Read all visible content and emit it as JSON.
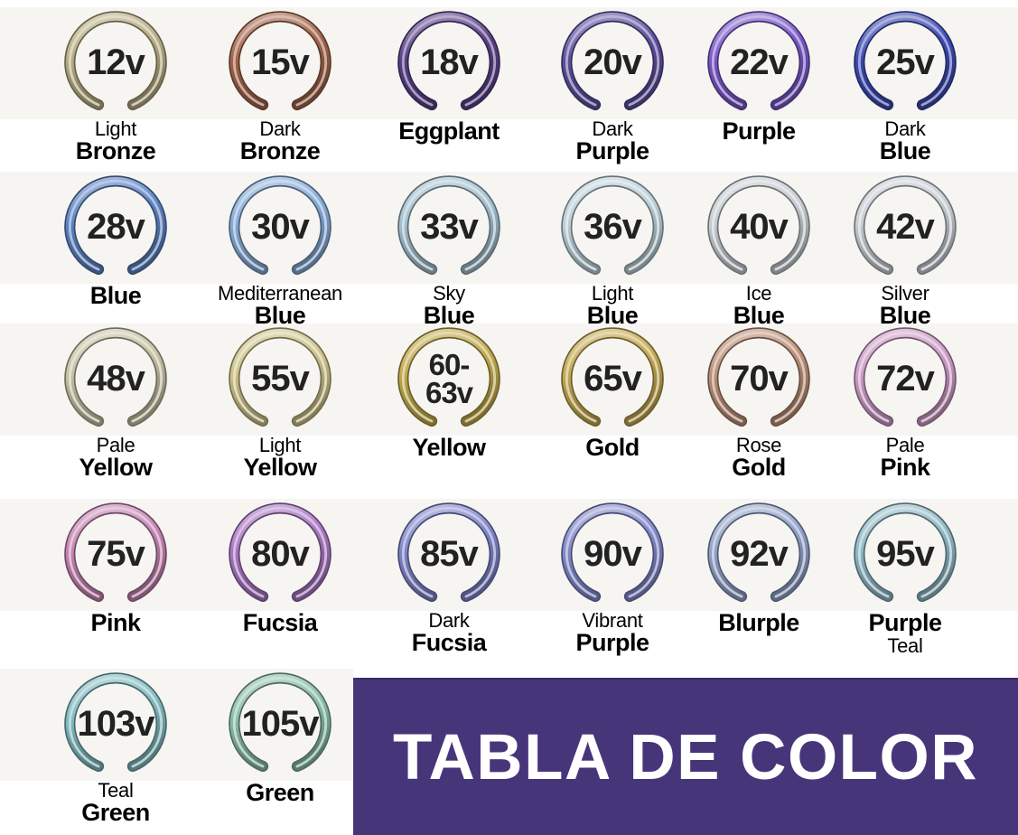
{
  "banner": {
    "title": "TABLA DE COLOR",
    "background": "#47357a",
    "text_color": "#ffffff"
  },
  "page": {
    "background": "#ffffff",
    "photo_strip_color": "#f6f5f2"
  },
  "rings": [
    {
      "voltage_lines": [
        "12v"
      ],
      "label_lines": [
        {
          "text": "Light",
          "bold": false
        },
        {
          "text": "Bronze",
          "bold": true
        }
      ],
      "color": "#b7ad83"
    },
    {
      "voltage_lines": [
        "15v"
      ],
      "label_lines": [
        {
          "text": "Dark",
          "bold": false
        },
        {
          "text": "Bronze",
          "bold": true
        }
      ],
      "color": "#a2644a"
    },
    {
      "voltage_lines": [
        "18v"
      ],
      "label_lines": [
        {
          "text": "Eggplant",
          "bold": true
        }
      ],
      "color": "#5a4088"
    },
    {
      "voltage_lines": [
        "20v"
      ],
      "label_lines": [
        {
          "text": "Dark",
          "bold": false
        },
        {
          "text": "Purple",
          "bold": true
        }
      ],
      "color": "#5d4f9e"
    },
    {
      "voltage_lines": [
        "22v"
      ],
      "label_lines": [
        {
          "text": "Purple",
          "bold": true
        }
      ],
      "color": "#7a58c8"
    },
    {
      "voltage_lines": [
        "25v"
      ],
      "label_lines": [
        {
          "text": "Dark",
          "bold": false
        },
        {
          "text": "Blue",
          "bold": true
        }
      ],
      "color": "#3c4ab2"
    },
    {
      "voltage_lines": [
        "28v"
      ],
      "label_lines": [
        {
          "text": "Blue",
          "bold": true
        }
      ],
      "color": "#5c82c2"
    },
    {
      "voltage_lines": [
        "30v"
      ],
      "label_lines": [
        {
          "text": "Mediterranean",
          "bold": false
        },
        {
          "text": "Blue",
          "bold": true
        }
      ],
      "color": "#86abd6"
    },
    {
      "voltage_lines": [
        "33v"
      ],
      "label_lines": [
        {
          "text": "Sky",
          "bold": false
        },
        {
          "text": "Blue",
          "bold": true
        }
      ],
      "color": "#a3bfce"
    },
    {
      "voltage_lines": [
        "36v"
      ],
      "label_lines": [
        {
          "text": "Light",
          "bold": false
        },
        {
          "text": "Blue",
          "bold": true
        }
      ],
      "color": "#bccfd8"
    },
    {
      "voltage_lines": [
        "40v"
      ],
      "label_lines": [
        {
          "text": "Ice",
          "bold": false
        },
        {
          "text": "Blue",
          "bold": true
        }
      ],
      "color": "#c6ccd1"
    },
    {
      "voltage_lines": [
        "42v"
      ],
      "label_lines": [
        {
          "text": "Silver",
          "bold": false
        },
        {
          "text": "Blue",
          "bold": true
        }
      ],
      "color": "#c8cdd2"
    },
    {
      "voltage_lines": [
        "48v"
      ],
      "label_lines": [
        {
          "text": "Pale",
          "bold": false
        },
        {
          "text": "Yellow",
          "bold": true
        }
      ],
      "color": "#c6c1a4"
    },
    {
      "voltage_lines": [
        "55v"
      ],
      "label_lines": [
        {
          "text": "Light",
          "bold": false
        },
        {
          "text": "Yellow",
          "bold": true
        }
      ],
      "color": "#cdc289"
    },
    {
      "voltage_lines": [
        "60-",
        "63v"
      ],
      "label_lines": [
        {
          "text": "Yellow",
          "bold": true
        }
      ],
      "color": "#c0a94c"
    },
    {
      "voltage_lines": [
        "65v"
      ],
      "label_lines": [
        {
          "text": "Gold",
          "bold": true
        }
      ],
      "color": "#c2a851"
    },
    {
      "voltage_lines": [
        "70v"
      ],
      "label_lines": [
        {
          "text": "Rose",
          "bold": false
        },
        {
          "text": "Gold",
          "bold": true
        }
      ],
      "color": "#bb8f77"
    },
    {
      "voltage_lines": [
        "72v"
      ],
      "label_lines": [
        {
          "text": "Pale",
          "bold": false
        },
        {
          "text": "Pink",
          "bold": true
        }
      ],
      "color": "#cc9cc6"
    },
    {
      "voltage_lines": [
        "75v"
      ],
      "label_lines": [
        {
          "text": "Pink",
          "bold": true
        }
      ],
      "color": "#c784b2"
    },
    {
      "voltage_lines": [
        "80v"
      ],
      "label_lines": [
        {
          "text": "Fucsia",
          "bold": true
        }
      ],
      "color": "#a977c3"
    },
    {
      "voltage_lines": [
        "85v"
      ],
      "label_lines": [
        {
          "text": "Dark",
          "bold": false
        },
        {
          "text": "Fucsia",
          "bold": true
        }
      ],
      "color": "#7f85c9"
    },
    {
      "voltage_lines": [
        "90v"
      ],
      "label_lines": [
        {
          "text": "Vibrant",
          "bold": false
        },
        {
          "text": "Purple",
          "bold": true
        }
      ],
      "color": "#8289cb"
    },
    {
      "voltage_lines": [
        "92v"
      ],
      "label_lines": [
        {
          "text": "Blurple",
          "bold": true
        }
      ],
      "color": "#92a2c9"
    },
    {
      "voltage_lines": [
        "95v"
      ],
      "label_lines": [
        {
          "text": "Purple",
          "bold": true
        },
        {
          "text": "Teal",
          "bold": false
        }
      ],
      "color": "#90b9c7"
    },
    {
      "voltage_lines": [
        "103v"
      ],
      "label_lines": [
        {
          "text": "Teal",
          "bold": false
        },
        {
          "text": "Green",
          "bold": true
        }
      ],
      "color": "#81babf"
    },
    {
      "voltage_lines": [
        "105v"
      ],
      "label_lines": [
        {
          "text": "Green",
          "bold": true
        }
      ],
      "color": "#8abda7"
    }
  ],
  "chart_data": {
    "type": "table",
    "title": "TABLA DE COLOR",
    "columns": [
      "voltage",
      "color_name"
    ],
    "rows": [
      [
        "12v",
        "Light Bronze"
      ],
      [
        "15v",
        "Dark Bronze"
      ],
      [
        "18v",
        "Eggplant"
      ],
      [
        "20v",
        "Dark Purple"
      ],
      [
        "22v",
        "Purple"
      ],
      [
        "25v",
        "Dark Blue"
      ],
      [
        "28v",
        "Blue"
      ],
      [
        "30v",
        "Mediterranean Blue"
      ],
      [
        "33v",
        "Sky Blue"
      ],
      [
        "36v",
        "Light Blue"
      ],
      [
        "40v",
        "Ice Blue"
      ],
      [
        "42v",
        "Silver Blue"
      ],
      [
        "48v",
        "Pale Yellow"
      ],
      [
        "55v",
        "Light Yellow"
      ],
      [
        "60-63v",
        "Yellow"
      ],
      [
        "65v",
        "Gold"
      ],
      [
        "70v",
        "Rose Gold"
      ],
      [
        "72v",
        "Pale Pink"
      ],
      [
        "75v",
        "Pink"
      ],
      [
        "80v",
        "Fucsia"
      ],
      [
        "85v",
        "Dark Fucsia"
      ],
      [
        "90v",
        "Vibrant Purple"
      ],
      [
        "92v",
        "Blurple"
      ],
      [
        "95v",
        "Purple Teal"
      ],
      [
        "103v",
        "Teal Green"
      ],
      [
        "105v",
        "Green"
      ]
    ],
    "legend_position": "none",
    "grid": false
  }
}
